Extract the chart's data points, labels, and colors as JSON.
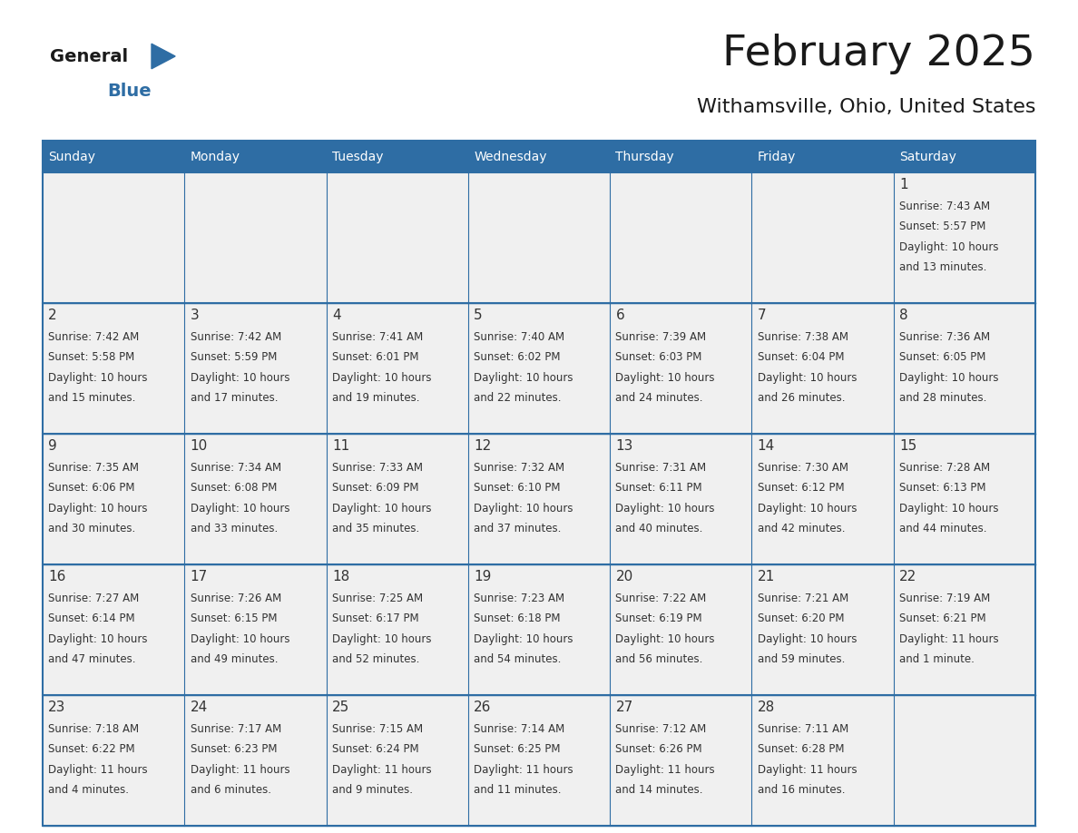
{
  "title": "February 2025",
  "subtitle": "Withamsville, Ohio, United States",
  "header_bg_color": "#2E6DA4",
  "header_text_color": "#FFFFFF",
  "cell_bg_color": "#F0F0F0",
  "cell_text_color": "#333333",
  "day_number_color": "#333333",
  "border_color": "#2E6DA4",
  "days_of_week": [
    "Sunday",
    "Monday",
    "Tuesday",
    "Wednesday",
    "Thursday",
    "Friday",
    "Saturday"
  ],
  "calendar_data": [
    [
      null,
      null,
      null,
      null,
      null,
      null,
      1
    ],
    [
      2,
      3,
      4,
      5,
      6,
      7,
      8
    ],
    [
      9,
      10,
      11,
      12,
      13,
      14,
      15
    ],
    [
      16,
      17,
      18,
      19,
      20,
      21,
      22
    ],
    [
      23,
      24,
      25,
      26,
      27,
      28,
      null
    ]
  ],
  "cell_info": {
    "1": {
      "sunrise": "7:43 AM",
      "sunset": "5:57 PM",
      "daylight_line1": "Daylight: 10 hours",
      "daylight_line2": "and 13 minutes."
    },
    "2": {
      "sunrise": "7:42 AM",
      "sunset": "5:58 PM",
      "daylight_line1": "Daylight: 10 hours",
      "daylight_line2": "and 15 minutes."
    },
    "3": {
      "sunrise": "7:42 AM",
      "sunset": "5:59 PM",
      "daylight_line1": "Daylight: 10 hours",
      "daylight_line2": "and 17 minutes."
    },
    "4": {
      "sunrise": "7:41 AM",
      "sunset": "6:01 PM",
      "daylight_line1": "Daylight: 10 hours",
      "daylight_line2": "and 19 minutes."
    },
    "5": {
      "sunrise": "7:40 AM",
      "sunset": "6:02 PM",
      "daylight_line1": "Daylight: 10 hours",
      "daylight_line2": "and 22 minutes."
    },
    "6": {
      "sunrise": "7:39 AM",
      "sunset": "6:03 PM",
      "daylight_line1": "Daylight: 10 hours",
      "daylight_line2": "and 24 minutes."
    },
    "7": {
      "sunrise": "7:38 AM",
      "sunset": "6:04 PM",
      "daylight_line1": "Daylight: 10 hours",
      "daylight_line2": "and 26 minutes."
    },
    "8": {
      "sunrise": "7:36 AM",
      "sunset": "6:05 PM",
      "daylight_line1": "Daylight: 10 hours",
      "daylight_line2": "and 28 minutes."
    },
    "9": {
      "sunrise": "7:35 AM",
      "sunset": "6:06 PM",
      "daylight_line1": "Daylight: 10 hours",
      "daylight_line2": "and 30 minutes."
    },
    "10": {
      "sunrise": "7:34 AM",
      "sunset": "6:08 PM",
      "daylight_line1": "Daylight: 10 hours",
      "daylight_line2": "and 33 minutes."
    },
    "11": {
      "sunrise": "7:33 AM",
      "sunset": "6:09 PM",
      "daylight_line1": "Daylight: 10 hours",
      "daylight_line2": "and 35 minutes."
    },
    "12": {
      "sunrise": "7:32 AM",
      "sunset": "6:10 PM",
      "daylight_line1": "Daylight: 10 hours",
      "daylight_line2": "and 37 minutes."
    },
    "13": {
      "sunrise": "7:31 AM",
      "sunset": "6:11 PM",
      "daylight_line1": "Daylight: 10 hours",
      "daylight_line2": "and 40 minutes."
    },
    "14": {
      "sunrise": "7:30 AM",
      "sunset": "6:12 PM",
      "daylight_line1": "Daylight: 10 hours",
      "daylight_line2": "and 42 minutes."
    },
    "15": {
      "sunrise": "7:28 AM",
      "sunset": "6:13 PM",
      "daylight_line1": "Daylight: 10 hours",
      "daylight_line2": "and 44 minutes."
    },
    "16": {
      "sunrise": "7:27 AM",
      "sunset": "6:14 PM",
      "daylight_line1": "Daylight: 10 hours",
      "daylight_line2": "and 47 minutes."
    },
    "17": {
      "sunrise": "7:26 AM",
      "sunset": "6:15 PM",
      "daylight_line1": "Daylight: 10 hours",
      "daylight_line2": "and 49 minutes."
    },
    "18": {
      "sunrise": "7:25 AM",
      "sunset": "6:17 PM",
      "daylight_line1": "Daylight: 10 hours",
      "daylight_line2": "and 52 minutes."
    },
    "19": {
      "sunrise": "7:23 AM",
      "sunset": "6:18 PM",
      "daylight_line1": "Daylight: 10 hours",
      "daylight_line2": "and 54 minutes."
    },
    "20": {
      "sunrise": "7:22 AM",
      "sunset": "6:19 PM",
      "daylight_line1": "Daylight: 10 hours",
      "daylight_line2": "and 56 minutes."
    },
    "21": {
      "sunrise": "7:21 AM",
      "sunset": "6:20 PM",
      "daylight_line1": "Daylight: 10 hours",
      "daylight_line2": "and 59 minutes."
    },
    "22": {
      "sunrise": "7:19 AM",
      "sunset": "6:21 PM",
      "daylight_line1": "Daylight: 11 hours",
      "daylight_line2": "and 1 minute."
    },
    "23": {
      "sunrise": "7:18 AM",
      "sunset": "6:22 PM",
      "daylight_line1": "Daylight: 11 hours",
      "daylight_line2": "and 4 minutes."
    },
    "24": {
      "sunrise": "7:17 AM",
      "sunset": "6:23 PM",
      "daylight_line1": "Daylight: 11 hours",
      "daylight_line2": "and 6 minutes."
    },
    "25": {
      "sunrise": "7:15 AM",
      "sunset": "6:24 PM",
      "daylight_line1": "Daylight: 11 hours",
      "daylight_line2": "and 9 minutes."
    },
    "26": {
      "sunrise": "7:14 AM",
      "sunset": "6:25 PM",
      "daylight_line1": "Daylight: 11 hours",
      "daylight_line2": "and 11 minutes."
    },
    "27": {
      "sunrise": "7:12 AM",
      "sunset": "6:26 PM",
      "daylight_line1": "Daylight: 11 hours",
      "daylight_line2": "and 14 minutes."
    },
    "28": {
      "sunrise": "7:11 AM",
      "sunset": "6:28 PM",
      "daylight_line1": "Daylight: 11 hours",
      "daylight_line2": "and 16 minutes."
    }
  },
  "figsize": [
    11.88,
    9.18
  ],
  "dpi": 100
}
